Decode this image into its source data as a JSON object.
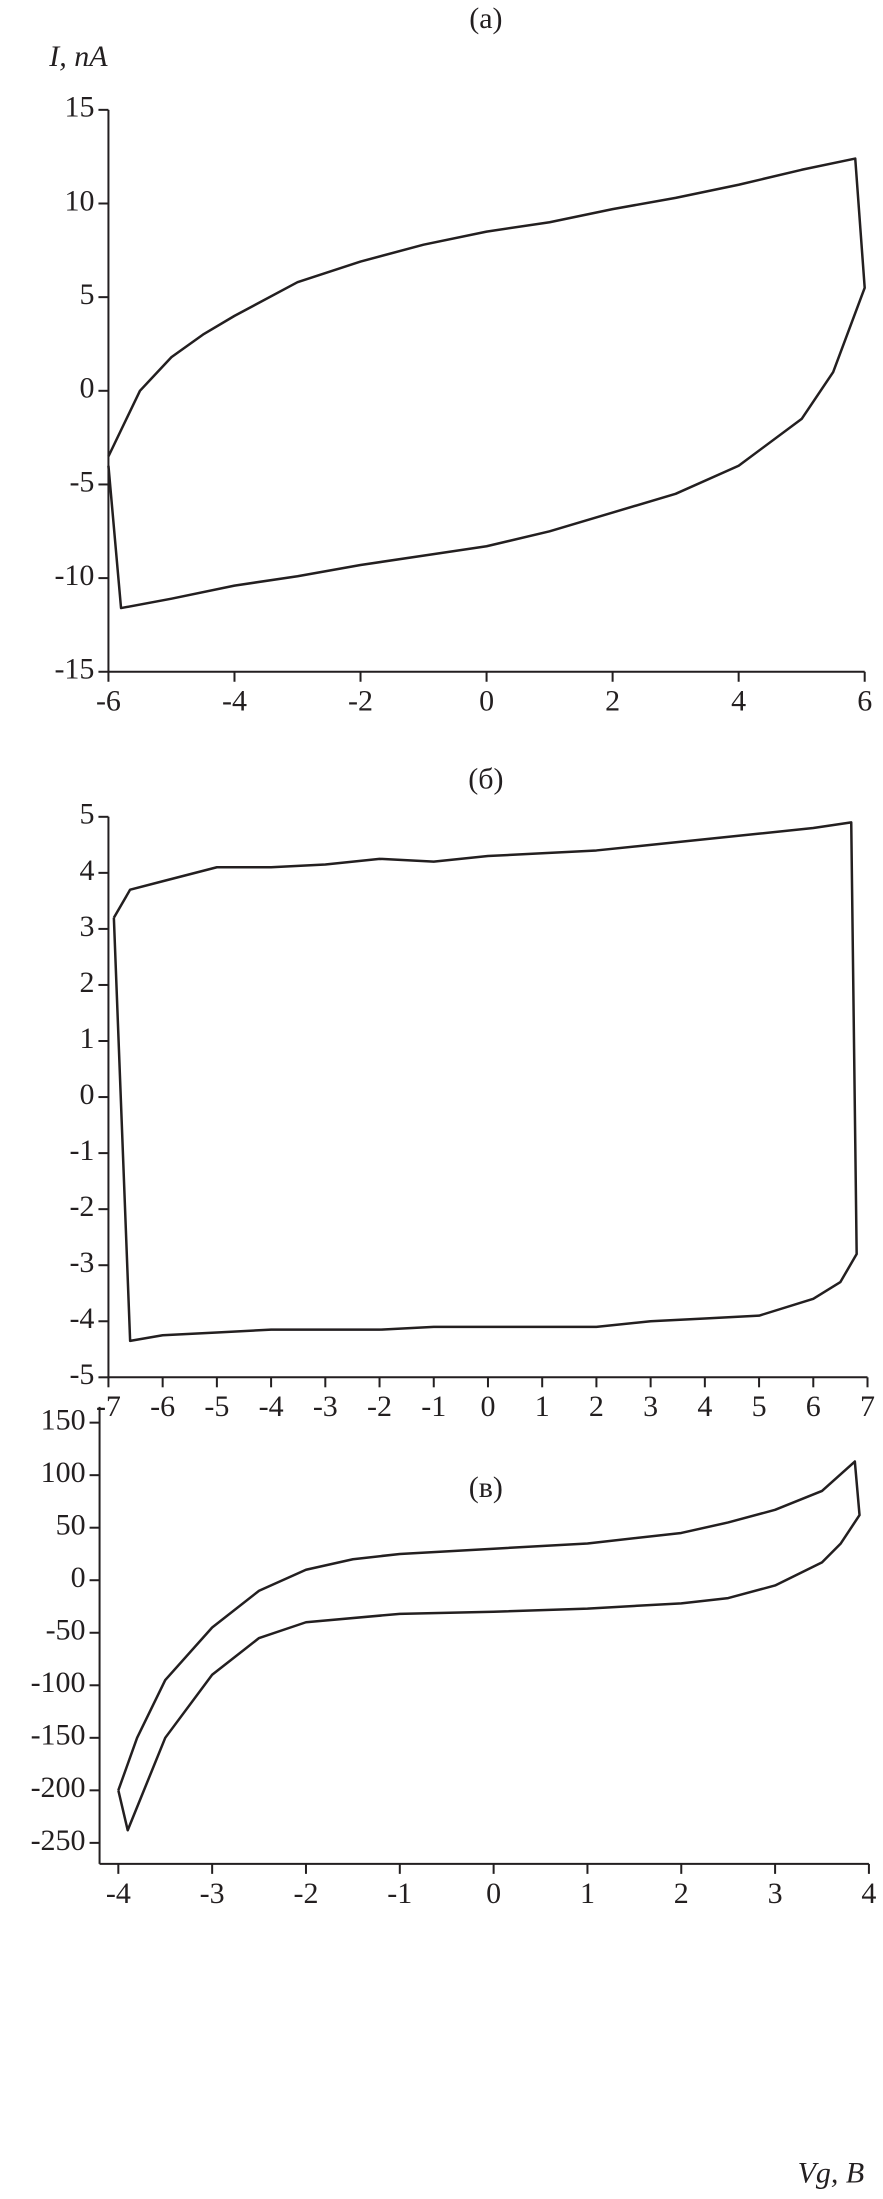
{
  "chart_data": [
    {
      "type": "line",
      "title": "(а)",
      "ylabel": "I, пА",
      "color": "#231f20",
      "xlim": [
        -6,
        6
      ],
      "xticks": [
        -6,
        -4,
        -2,
        0,
        2,
        4,
        6
      ],
      "ylim": [
        -15,
        15
      ],
      "yticks": [
        -15,
        -10,
        -5,
        0,
        5,
        10,
        15
      ],
      "x": [
        -6,
        -5.5,
        -5,
        -4.5,
        -4,
        -3,
        -2,
        -1,
        0,
        1,
        2,
        3,
        4,
        5,
        5.85,
        6,
        5.5,
        5,
        4,
        3,
        2,
        1,
        0,
        -1,
        -2,
        -3,
        -4,
        -5,
        -5.8,
        -6
      ],
      "values": [
        -3.5,
        0,
        1.8,
        3,
        4,
        5.8,
        6.9,
        7.8,
        8.5,
        9,
        9.7,
        10.3,
        11,
        11.8,
        12.4,
        5.5,
        1,
        -1.5,
        -4,
        -5.5,
        -6.5,
        -7.5,
        -8.3,
        -8.8,
        -9.3,
        -9.9,
        -10.4,
        -11.1,
        -11.6,
        -4
      ]
    },
    {
      "type": "line",
      "title": "(б)",
      "color": "#231f20",
      "xlim": [
        -7,
        7
      ],
      "xticks": [
        -7,
        -6,
        -5,
        -4,
        -3,
        -2,
        -1,
        0,
        1,
        2,
        3,
        4,
        5,
        6,
        7
      ],
      "ylim": [
        -5,
        5
      ],
      "yticks": [
        -5,
        -4,
        -3,
        -2,
        -1,
        0,
        1,
        2,
        3,
        4,
        5
      ],
      "x": [
        -6.9,
        -6.6,
        -6,
        -5,
        -4,
        -3,
        -2,
        -1,
        0,
        1,
        2,
        3,
        4,
        5,
        6,
        6.7,
        6.8,
        6.5,
        6,
        5,
        4,
        3,
        2,
        1,
        0,
        -1,
        -2,
        -3,
        -4,
        -5,
        -6,
        -6.6,
        -6.9
      ],
      "values": [
        3.2,
        3.7,
        3.85,
        4.1,
        4.1,
        4.15,
        4.25,
        4.2,
        4.3,
        4.35,
        4.4,
        4.5,
        4.6,
        4.7,
        4.8,
        4.9,
        -2.8,
        -3.3,
        -3.6,
        -3.9,
        -3.95,
        -4,
        -4.1,
        -4.1,
        -4.1,
        -4.1,
        -4.15,
        -4.15,
        -4.15,
        -4.2,
        -4.25,
        -4.35,
        3.2
      ]
    },
    {
      "type": "line",
      "title": "(в)",
      "xlabel": "Vg, В",
      "color": "#231f20",
      "xlim": [
        -4.2,
        4
      ],
      "xticks": [
        -4,
        -3,
        -2,
        -1,
        0,
        1,
        2,
        3,
        4
      ],
      "ylim": [
        -270,
        165
      ],
      "yticks": [
        -250,
        -200,
        -150,
        -100,
        -50,
        0,
        50,
        100,
        150
      ],
      "x": [
        -4,
        -3.8,
        -3.5,
        -3,
        -2.5,
        -2,
        -1.5,
        -1,
        0,
        1,
        2,
        2.5,
        3,
        3.5,
        3.85,
        3.9,
        3.7,
        3.5,
        3,
        2.5,
        2,
        1,
        0,
        -1,
        -2,
        -2.5,
        -3,
        -3.5,
        -3.9,
        -4
      ],
      "values": [
        -200,
        -150,
        -95,
        -45,
        -10,
        10,
        20,
        25,
        30,
        35,
        45,
        55,
        67,
        85,
        113,
        62,
        35,
        17,
        -5,
        -17,
        -22,
        -27,
        -30,
        -32,
        -40,
        -55,
        -90,
        -150,
        -238,
        -200
      ]
    }
  ]
}
